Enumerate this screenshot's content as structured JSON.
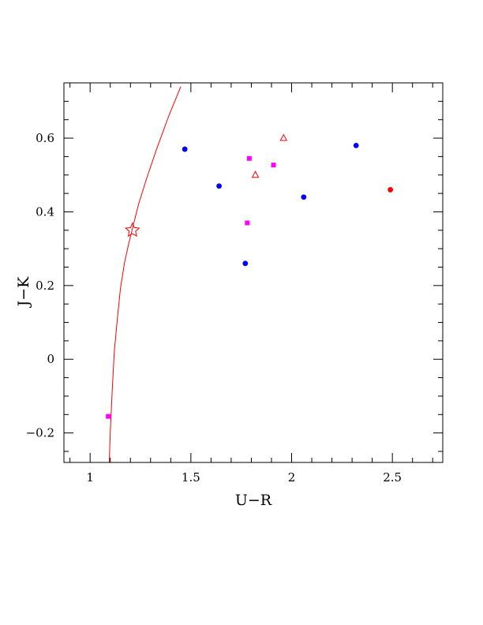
{
  "chart_data": {
    "type": "scatter",
    "xlabel": "U−R",
    "ylabel": "J−K",
    "xlim": [
      0.87,
      2.75
    ],
    "ylim": [
      -0.28,
      0.75
    ],
    "x_ticks": [
      {
        "value": 1,
        "label": "1"
      },
      {
        "value": 1.5,
        "label": "1.5"
      },
      {
        "value": 2,
        "label": "2"
      },
      {
        "value": 2.5,
        "label": "2.5"
      }
    ],
    "y_ticks": [
      {
        "value": -0.2,
        "label": "−0.2"
      },
      {
        "value": 0,
        "label": "0"
      },
      {
        "value": 0.2,
        "label": "0.2"
      },
      {
        "value": 0.4,
        "label": "0.4"
      },
      {
        "value": 0.6,
        "label": "0.6"
      }
    ],
    "x_minor_step": 0.1,
    "y_minor_step": 0.05,
    "grid": false,
    "series": [
      {
        "marker": "circle",
        "color": "#0000ff",
        "points": [
          [
            1.47,
            0.57
          ],
          [
            1.64,
            0.47
          ],
          [
            1.77,
            0.26
          ],
          [
            2.06,
            0.44
          ],
          [
            2.32,
            0.58
          ]
        ]
      },
      {
        "marker": "square",
        "color": "#ff00ff",
        "points": [
          [
            1.09,
            -0.155
          ],
          [
            1.78,
            0.37
          ],
          [
            1.79,
            0.545
          ],
          [
            1.91,
            0.527
          ]
        ]
      },
      {
        "marker": "open-triangle",
        "color": "#ff0000",
        "points": [
          [
            1.82,
            0.5
          ],
          [
            1.96,
            0.6
          ]
        ]
      },
      {
        "marker": "circle",
        "color": "#ff0000",
        "points": [
          [
            2.49,
            0.46
          ]
        ]
      },
      {
        "marker": "open-star",
        "color": "#ff0000",
        "points": [
          [
            1.21,
            0.35
          ]
        ]
      }
    ],
    "curve": {
      "color": "#ff0000",
      "points": [
        [
          1.095,
          -0.28
        ],
        [
          1.1,
          -0.2
        ],
        [
          1.11,
          -0.08
        ],
        [
          1.12,
          0.02
        ],
        [
          1.135,
          0.11
        ],
        [
          1.15,
          0.19
        ],
        [
          1.17,
          0.26
        ],
        [
          1.19,
          0.31
        ],
        [
          1.21,
          0.355
        ],
        [
          1.24,
          0.42
        ],
        [
          1.28,
          0.49
        ],
        [
          1.33,
          0.57
        ],
        [
          1.39,
          0.66
        ],
        [
          1.45,
          0.74
        ]
      ]
    }
  }
}
